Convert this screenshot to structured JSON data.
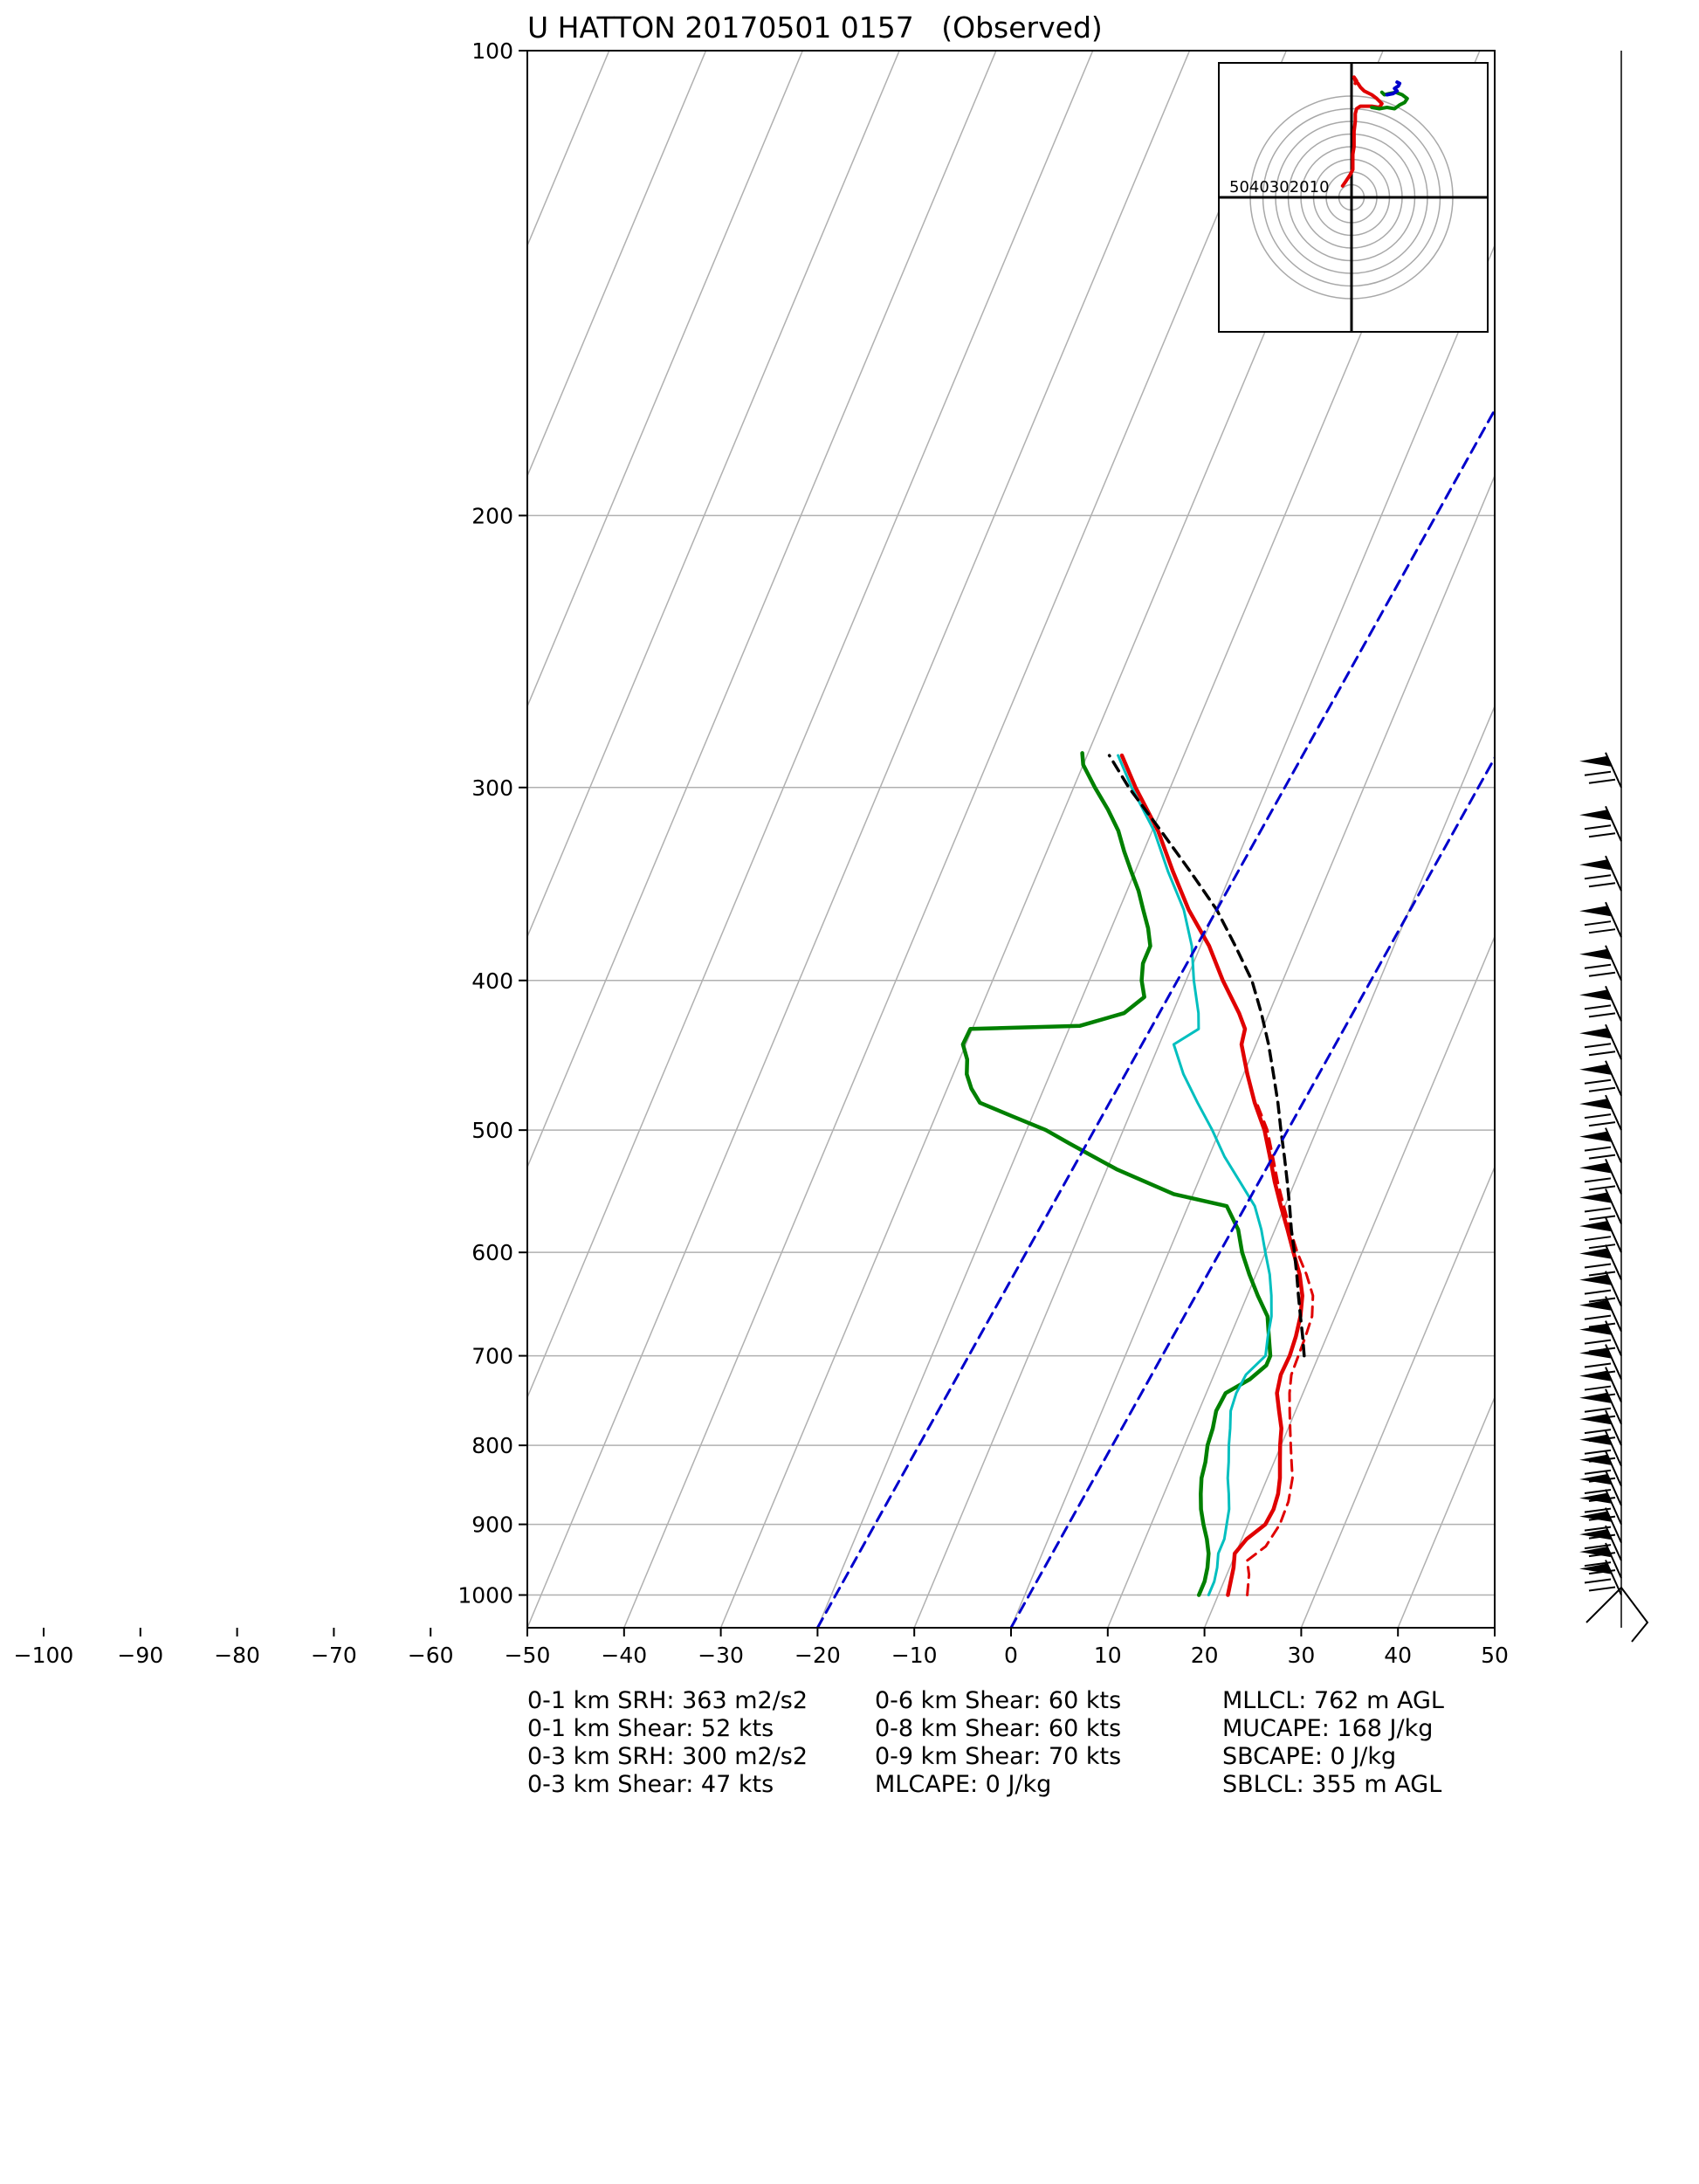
{
  "title": "U HATTON 20170501 0157   (Observed)",
  "chart_data": {
    "type": "skew-t log-p sounding",
    "title": "U HATTON 20170501 0157   (Observed)",
    "pressure_ticks": [
      100,
      200,
      300,
      400,
      500,
      600,
      700,
      800,
      900,
      1000
    ],
    "temperature_ticks": [
      -100,
      -90,
      -80,
      -70,
      -60,
      -50,
      -40,
      -30,
      -20,
      -10,
      0,
      10,
      20,
      30,
      40,
      50
    ],
    "xlim": [
      -50,
      50
    ],
    "plim": [
      1050,
      100
    ],
    "grid": true,
    "colors": {
      "temperature": "#e00000",
      "dewpoint": "#008000",
      "wetbulb": "#00bfbf",
      "parcel": "#000000",
      "virtual_temperature": "#e00000",
      "dry_adiabat": "#0000cc",
      "hodo_low": "#e00000",
      "hodo_mid": "#008000",
      "hodo_high": "#0000cc"
    },
    "series": [
      {
        "id": "temperature",
        "style": "solid",
        "points": [
          [
            1000,
            21
          ],
          [
            980,
            20.7
          ],
          [
            960,
            20.4
          ],
          [
            940,
            19.9
          ],
          [
            920,
            20.5
          ],
          [
            900,
            21.8
          ],
          [
            880,
            22
          ],
          [
            860,
            21.8
          ],
          [
            840,
            21.3
          ],
          [
            820,
            20.6
          ],
          [
            800,
            19.9
          ],
          [
            780,
            19.3
          ],
          [
            760,
            18.3
          ],
          [
            740,
            17.3
          ],
          [
            720,
            16.9
          ],
          [
            700,
            17
          ],
          [
            680,
            16.8
          ],
          [
            660,
            16.4
          ],
          [
            640,
            15.7
          ],
          [
            620,
            14.5
          ],
          [
            600,
            12.9
          ],
          [
            580,
            11.3
          ],
          [
            560,
            9.6
          ],
          [
            540,
            7.9
          ],
          [
            520,
            6.3
          ],
          [
            500,
            4.6
          ],
          [
            480,
            2.4
          ],
          [
            460,
            0.4
          ],
          [
            440,
            -1.5
          ],
          [
            430,
            -1.8
          ],
          [
            420,
            -3.1
          ],
          [
            400,
            -6.2
          ],
          [
            380,
            -9.1
          ],
          [
            360,
            -12.8
          ],
          [
            340,
            -16.1
          ],
          [
            320,
            -19.4
          ],
          [
            300,
            -23.6
          ],
          [
            286,
            -26.4
          ]
        ]
      },
      {
        "id": "virtual_temperature",
        "style": "dashed",
        "points": [
          [
            1000,
            23
          ],
          [
            970,
            22.3
          ],
          [
            950,
            21.5
          ],
          [
            930,
            22.8
          ],
          [
            900,
            23.3
          ],
          [
            870,
            23.2
          ],
          [
            840,
            22.6
          ],
          [
            820,
            21.8
          ],
          [
            800,
            21
          ],
          [
            780,
            20.2
          ],
          [
            760,
            19.4
          ],
          [
            740,
            18.6
          ],
          [
            720,
            18
          ],
          [
            700,
            17.9
          ],
          [
            680,
            17.8
          ],
          [
            660,
            17.6
          ],
          [
            640,
            16.8
          ],
          [
            620,
            15.2
          ],
          [
            600,
            13.3
          ],
          [
            580,
            11.6
          ],
          [
            560,
            9.9
          ],
          [
            540,
            8.2
          ],
          [
            520,
            6.6
          ],
          [
            500,
            4.9
          ],
          [
            480,
            2.6
          ]
        ]
      },
      {
        "id": "dewpoint",
        "style": "solid",
        "points": [
          [
            1000,
            18
          ],
          [
            980,
            18
          ],
          [
            960,
            17.7
          ],
          [
            940,
            17.2
          ],
          [
            920,
            16.4
          ],
          [
            900,
            15.4
          ],
          [
            880,
            14.5
          ],
          [
            860,
            13.8
          ],
          [
            840,
            13.2
          ],
          [
            820,
            12.9
          ],
          [
            800,
            12.4
          ],
          [
            780,
            12.2
          ],
          [
            760,
            11.8
          ],
          [
            740,
            12
          ],
          [
            725,
            13.9
          ],
          [
            710,
            15
          ],
          [
            700,
            15
          ],
          [
            680,
            14
          ],
          [
            660,
            13
          ],
          [
            640,
            11.1
          ],
          [
            620,
            9.3
          ],
          [
            600,
            7.6
          ],
          [
            580,
            6.2
          ],
          [
            560,
            4
          ],
          [
            550,
            -2
          ],
          [
            530,
            -9
          ],
          [
            510,
            -15
          ],
          [
            500,
            -18
          ],
          [
            490,
            -22
          ],
          [
            480,
            -26
          ],
          [
            470,
            -27.5
          ],
          [
            460,
            -28.6
          ],
          [
            450,
            -29.2
          ],
          [
            440,
            -30.3
          ],
          [
            430,
            -30.2
          ],
          [
            428,
            -19
          ],
          [
            420,
            -15
          ],
          [
            410,
            -13.6
          ],
          [
            400,
            -14.6
          ],
          [
            390,
            -15.2
          ],
          [
            380,
            -15.2
          ],
          [
            370,
            -16.2
          ],
          [
            360,
            -17.5
          ],
          [
            350,
            -18.8
          ],
          [
            340,
            -20.4
          ],
          [
            330,
            -22
          ],
          [
            320,
            -23.5
          ],
          [
            310,
            -25.5
          ],
          [
            300,
            -27.8
          ],
          [
            290,
            -30
          ],
          [
            285,
            -30.6
          ]
        ]
      },
      {
        "id": "wetbulb",
        "style": "solid",
        "points": [
          [
            1000,
            19
          ],
          [
            980,
            19
          ],
          [
            960,
            18.7
          ],
          [
            940,
            18.2
          ],
          [
            920,
            18.2
          ],
          [
            900,
            17.8
          ],
          [
            880,
            17.4
          ],
          [
            860,
            16.7
          ],
          [
            840,
            15.9
          ],
          [
            820,
            15.3
          ],
          [
            800,
            14.6
          ],
          [
            780,
            14
          ],
          [
            760,
            13.3
          ],
          [
            740,
            13.1
          ],
          [
            720,
            13.3
          ],
          [
            700,
            14.5
          ],
          [
            680,
            13.9
          ],
          [
            660,
            13.4
          ],
          [
            640,
            12.5
          ],
          [
            620,
            11.4
          ],
          [
            600,
            10
          ],
          [
            580,
            8.6
          ],
          [
            560,
            6.9
          ],
          [
            540,
            4.3
          ],
          [
            520,
            1.6
          ],
          [
            500,
            -0.8
          ],
          [
            480,
            -3.5
          ],
          [
            460,
            -6.2
          ],
          [
            440,
            -8.5
          ],
          [
            430,
            -6.6
          ],
          [
            420,
            -7.3
          ],
          [
            400,
            -9.2
          ],
          [
            380,
            -10.9
          ],
          [
            360,
            -13.3
          ],
          [
            340,
            -16.6
          ],
          [
            320,
            -19.8
          ],
          [
            300,
            -24
          ],
          [
            286,
            -26.8
          ]
        ]
      },
      {
        "id": "parcel",
        "style": "dashed",
        "points": [
          [
            700,
            18.5
          ],
          [
            680,
            17.5
          ],
          [
            660,
            16.4
          ],
          [
            640,
            15.3
          ],
          [
            620,
            14.2
          ],
          [
            600,
            13
          ],
          [
            580,
            11.7
          ],
          [
            560,
            10.5
          ],
          [
            540,
            9.2
          ],
          [
            520,
            7.8
          ],
          [
            500,
            6.3
          ],
          [
            480,
            4.8
          ],
          [
            460,
            3.1
          ],
          [
            440,
            1.3
          ],
          [
            420,
            -0.8
          ],
          [
            400,
            -3.2
          ],
          [
            380,
            -6.4
          ],
          [
            360,
            -9.9
          ],
          [
            340,
            -14.3
          ],
          [
            320,
            -19.1
          ],
          [
            300,
            -24.3
          ],
          [
            286,
            -27.7
          ]
        ]
      },
      {
        "id": "dry_adiabat_1",
        "style": "dashed",
        "points": [
          [
            1050,
            -20
          ],
          [
            100,
            2.2
          ]
        ]
      },
      {
        "id": "dry_adiabat_2",
        "style": "dashed",
        "points": [
          [
            1050,
            0
          ],
          [
            100,
            22.2
          ]
        ]
      }
    ],
    "hodograph": {
      "ring_labels": [
        "50",
        "40",
        "30",
        "20",
        "10"
      ],
      "rings_kt": [
        10,
        20,
        30,
        40,
        50,
        60,
        70,
        80
      ],
      "segments": [
        {
          "id": "low",
          "color": "#e00000",
          "points": [
            [
              -7,
              9
            ],
            [
              -5,
              12
            ],
            [
              -3,
              15
            ],
            [
              -1,
              18
            ],
            [
              1,
              22
            ],
            [
              1,
              28
            ],
            [
              1,
              34
            ],
            [
              2,
              40
            ],
            [
              2,
              46
            ],
            [
              2,
              52
            ],
            [
              3,
              60
            ],
            [
              3,
              66
            ],
            [
              4,
              70
            ],
            [
              7,
              72
            ],
            [
              10,
              72
            ],
            [
              16,
              72
            ],
            [
              22,
              71
            ],
            [
              24,
              74
            ],
            [
              20,
              78
            ],
            [
              16,
              81
            ],
            [
              10,
              84
            ],
            [
              7,
              87
            ],
            [
              5,
              90
            ],
            [
              3,
              92
            ],
            [
              2,
              95
            ],
            [
              4,
              92
            ],
            [
              3,
              90
            ]
          ]
        },
        {
          "id": "mid",
          "color": "#008000",
          "points": [
            [
              16,
              71
            ],
            [
              22,
              70
            ],
            [
              28,
              71
            ],
            [
              34,
              70
            ],
            [
              38,
              73
            ],
            [
              42,
              75
            ],
            [
              44,
              78
            ],
            [
              40,
              81
            ],
            [
              35,
              83
            ],
            [
              30,
              82
            ],
            [
              26,
              81
            ],
            [
              24,
              83
            ]
          ]
        },
        {
          "id": "high",
          "color": "#0000cc",
          "points": [
            [
              28,
              81
            ],
            [
              33,
              82
            ],
            [
              36,
              84
            ],
            [
              34,
              86
            ],
            [
              37,
              88
            ],
            [
              38,
              90
            ],
            [
              36,
              91
            ]
          ]
        }
      ]
    },
    "wind_barbs": {
      "pressures": [
        1000,
        975,
        950,
        925,
        900,
        875,
        850,
        825,
        800,
        775,
        750,
        725,
        700,
        675,
        650,
        625,
        600,
        575,
        550,
        525,
        500,
        475,
        450,
        425,
        400,
        375,
        350,
        325,
        300
      ]
    }
  },
  "stats": {
    "col1": [
      "0-1 km SRH: 363 m2/s2",
      "0-1 km Shear: 52 kts",
      "0-3 km SRH: 300 m2/s2",
      "0-3 km Shear: 47 kts"
    ],
    "col2": [
      "0-6 km Shear: 60 kts",
      "0-8 km Shear: 60 kts",
      "0-9 km Shear: 70 kts",
      "MLCAPE: 0 J/kg"
    ],
    "col3": [
      "MLLCL: 762 m AGL",
      "MUCAPE: 168 J/kg",
      "SBCAPE: 0 J/kg",
      "SBLCL: 355 m AGL"
    ]
  }
}
